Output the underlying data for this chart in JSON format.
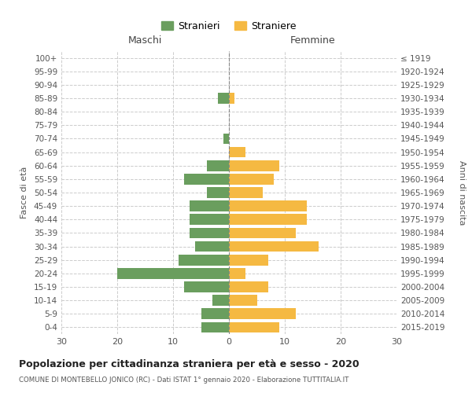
{
  "age_groups": [
    "100+",
    "95-99",
    "90-94",
    "85-89",
    "80-84",
    "75-79",
    "70-74",
    "65-69",
    "60-64",
    "55-59",
    "50-54",
    "45-49",
    "40-44",
    "35-39",
    "30-34",
    "25-29",
    "20-24",
    "15-19",
    "10-14",
    "5-9",
    "0-4"
  ],
  "birth_years": [
    "≤ 1919",
    "1920-1924",
    "1925-1929",
    "1930-1934",
    "1935-1939",
    "1940-1944",
    "1945-1949",
    "1950-1954",
    "1955-1959",
    "1960-1964",
    "1965-1969",
    "1970-1974",
    "1975-1979",
    "1980-1984",
    "1985-1989",
    "1990-1994",
    "1995-1999",
    "2000-2004",
    "2005-2009",
    "2010-2014",
    "2015-2019"
  ],
  "males": [
    0,
    0,
    0,
    2,
    0,
    0,
    1,
    0,
    4,
    8,
    4,
    7,
    7,
    7,
    6,
    9,
    20,
    8,
    3,
    5,
    5
  ],
  "females": [
    0,
    0,
    0,
    1,
    0,
    0,
    0,
    3,
    9,
    8,
    6,
    14,
    14,
    12,
    16,
    7,
    3,
    7,
    5,
    12,
    9
  ],
  "male_color": "#6a9e5e",
  "female_color": "#f5b942",
  "title": "Popolazione per cittadinanza straniera per età e sesso - 2020",
  "subtitle": "COMUNE DI MONTEBELLO JONICO (RC) - Dati ISTAT 1° gennaio 2020 - Elaborazione TUTTITALIA.IT",
  "legend_male": "Stranieri",
  "legend_female": "Straniere",
  "xlim": 30,
  "xlabel_left": "Maschi",
  "xlabel_right": "Femmine",
  "ylabel_left": "Fasce di età",
  "ylabel_right": "Anni di nascita",
  "bg_color": "#ffffff",
  "grid_color": "#cccccc",
  "bar_height": 0.8
}
